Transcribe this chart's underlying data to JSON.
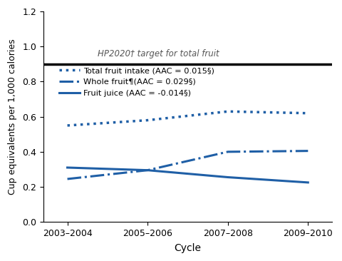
{
  "x_labels": [
    "2003–2004",
    "2005–2006",
    "2007–2008",
    "2009–2010"
  ],
  "x_positions": [
    0,
    1,
    2,
    3
  ],
  "total_fruit": [
    0.55,
    0.58,
    0.63,
    0.62
  ],
  "whole_fruit": [
    0.245,
    0.295,
    0.4,
    0.405
  ],
  "fruit_juice": [
    0.31,
    0.295,
    0.255,
    0.225
  ],
  "hp2020_target": 0.9,
  "hp2020_label": "HP2020† target for total fruit",
  "legend_total": "Total fruit intake (AAC = 0.015§)",
  "legend_whole": "Whole fruit¶(AAC = 0.029§)",
  "legend_juice": "Fruit juice (AAC = -0.014§)",
  "ylabel": "Cup equivalents per 1,000 calories",
  "xlabel": "Cycle",
  "ylim": [
    0.0,
    1.2
  ],
  "yticks": [
    0.0,
    0.2,
    0.4,
    0.6,
    0.8,
    1.0,
    1.2
  ],
  "line_color": "#1f5fa6",
  "hp2020_color": "#000000",
  "background_color": "#ffffff"
}
